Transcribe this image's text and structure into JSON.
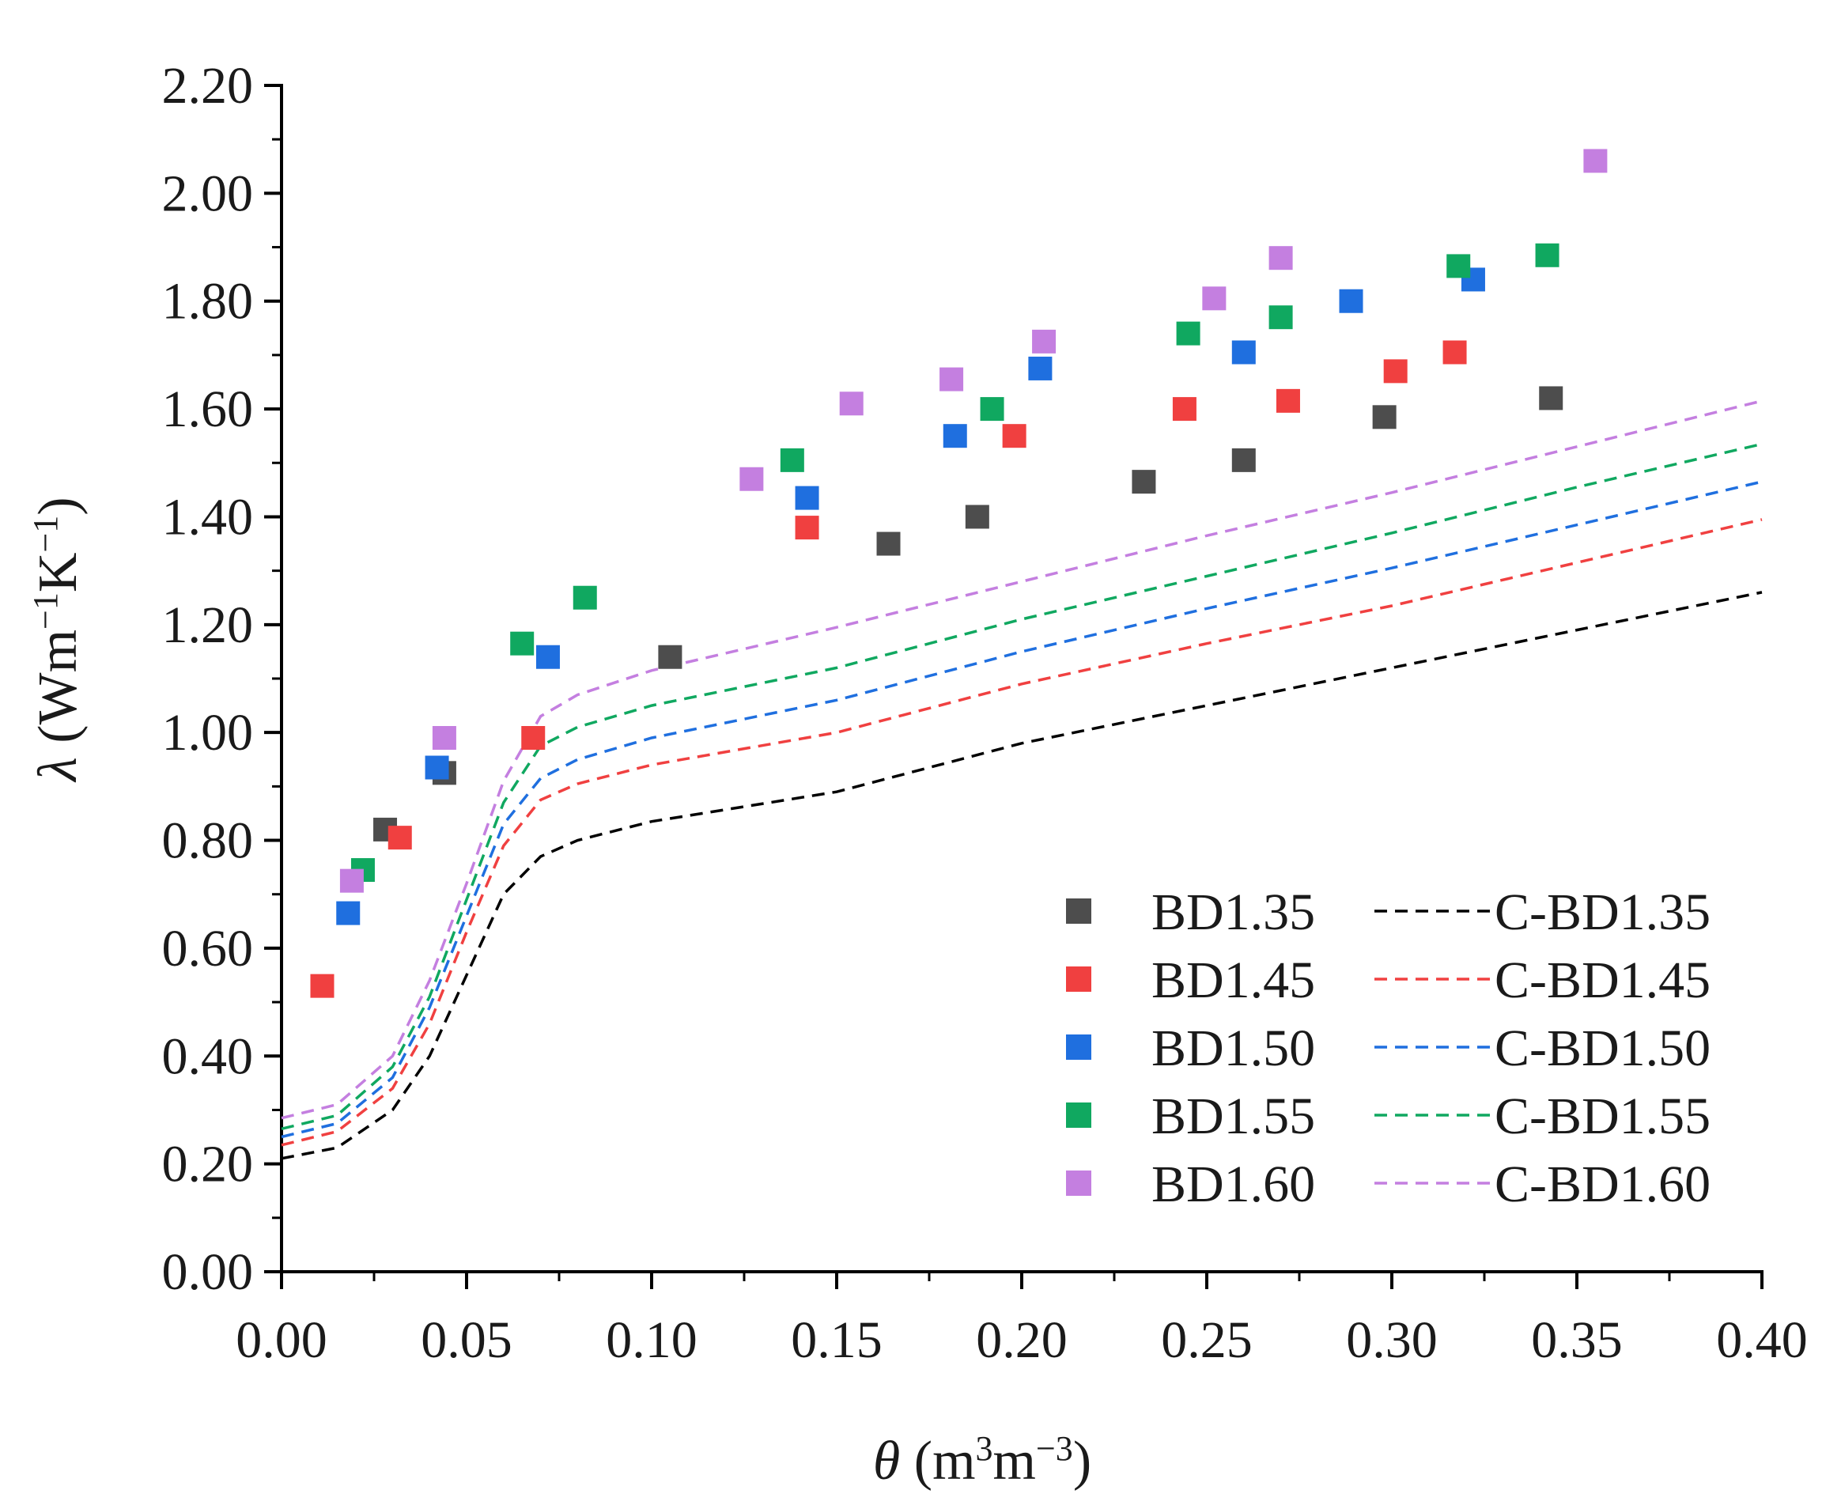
{
  "chart_data": {
    "type": "scatter",
    "title": "",
    "xlabel": "θ (m³m⁻³)",
    "ylabel": "λ (Wm⁻¹K⁻¹)",
    "xlabel_parts": {
      "symbol": "θ",
      "open": " (m",
      "sup1": "3",
      "mid": "m",
      "sup2": "−3",
      "close": ")"
    },
    "ylabel_parts": {
      "symbol": "λ",
      "open": " (Wm",
      "sup1": "−1",
      "mid": "K",
      "sup2": "−1",
      "close": ")"
    },
    "xlim": [
      0.0,
      0.4
    ],
    "ylim": [
      0.0,
      2.2
    ],
    "x_ticks": [
      0.0,
      0.05,
      0.1,
      0.15,
      0.2,
      0.25,
      0.3,
      0.35,
      0.4
    ],
    "x_tick_labels": [
      "0.00",
      "0.05",
      "0.10",
      "0.15",
      "0.20",
      "0.25",
      "0.30",
      "0.35",
      "0.40"
    ],
    "y_ticks": [
      0.0,
      0.2,
      0.4,
      0.6,
      0.8,
      1.0,
      1.2,
      1.4,
      1.6,
      1.8,
      2.0,
      2.2
    ],
    "y_tick_labels": [
      "0.00",
      "0.20",
      "0.40",
      "0.60",
      "0.80",
      "1.00",
      "1.20",
      "1.40",
      "1.60",
      "1.80",
      "2.00",
      "2.20"
    ],
    "grid": false,
    "legend_position": "bottom-right",
    "series": [
      {
        "name": "BD1.35",
        "kind": "scatter",
        "color": "#4d4d4d",
        "points": [
          [
            0.028,
            0.82
          ],
          [
            0.044,
            0.925
          ],
          [
            0.105,
            1.14
          ],
          [
            0.164,
            1.35
          ],
          [
            0.188,
            1.4
          ],
          [
            0.233,
            1.465
          ],
          [
            0.26,
            1.505
          ],
          [
            0.298,
            1.585
          ],
          [
            0.343,
            1.62
          ]
        ]
      },
      {
        "name": "BD1.45",
        "kind": "scatter",
        "color": "#f04040",
        "points": [
          [
            0.011,
            0.53
          ],
          [
            0.032,
            0.805
          ],
          [
            0.068,
            0.99
          ],
          [
            0.142,
            1.38
          ],
          [
            0.198,
            1.55
          ],
          [
            0.244,
            1.6
          ],
          [
            0.272,
            1.615
          ],
          [
            0.301,
            1.67
          ],
          [
            0.317,
            1.705
          ]
        ]
      },
      {
        "name": "BD1.50",
        "kind": "scatter",
        "color": "#1f6fdf",
        "points": [
          [
            0.018,
            0.665
          ],
          [
            0.042,
            0.935
          ],
          [
            0.072,
            1.14
          ],
          [
            0.142,
            1.435
          ],
          [
            0.182,
            1.55
          ],
          [
            0.205,
            1.675
          ],
          [
            0.26,
            1.705
          ],
          [
            0.289,
            1.8
          ],
          [
            0.322,
            1.84
          ]
        ]
      },
      {
        "name": "BD1.55",
        "kind": "scatter",
        "color": "#10a860",
        "points": [
          [
            0.022,
            0.745
          ],
          [
            0.065,
            1.165
          ],
          [
            0.082,
            1.25
          ],
          [
            0.138,
            1.505
          ],
          [
            0.192,
            1.6
          ],
          [
            0.245,
            1.74
          ],
          [
            0.27,
            1.77
          ],
          [
            0.318,
            1.865
          ],
          [
            0.342,
            1.885
          ]
        ]
      },
      {
        "name": "BD1.60",
        "kind": "scatter",
        "color": "#c47fe0",
        "points": [
          [
            0.019,
            0.725
          ],
          [
            0.044,
            0.99
          ],
          [
            0.127,
            1.47
          ],
          [
            0.154,
            1.61
          ],
          [
            0.181,
            1.655
          ],
          [
            0.206,
            1.725
          ],
          [
            0.252,
            1.805
          ],
          [
            0.27,
            1.88
          ],
          [
            0.355,
            2.06
          ]
        ]
      },
      {
        "name": "C-BD1.35",
        "kind": "line",
        "style": "dashed",
        "color": "#000000",
        "points": [
          [
            0.0,
            0.21
          ],
          [
            0.015,
            0.23
          ],
          [
            0.03,
            0.3
          ],
          [
            0.04,
            0.4
          ],
          [
            0.05,
            0.55
          ],
          [
            0.06,
            0.7
          ],
          [
            0.07,
            0.77
          ],
          [
            0.08,
            0.8
          ],
          [
            0.1,
            0.835
          ],
          [
            0.15,
            0.89
          ],
          [
            0.2,
            0.98
          ],
          [
            0.25,
            1.05
          ],
          [
            0.3,
            1.12
          ],
          [
            0.35,
            1.19
          ],
          [
            0.4,
            1.26
          ]
        ]
      },
      {
        "name": "C-BD1.45",
        "kind": "line",
        "style": "dashed",
        "color": "#f04040",
        "points": [
          [
            0.0,
            0.235
          ],
          [
            0.015,
            0.26
          ],
          [
            0.03,
            0.34
          ],
          [
            0.04,
            0.46
          ],
          [
            0.05,
            0.63
          ],
          [
            0.06,
            0.79
          ],
          [
            0.07,
            0.875
          ],
          [
            0.08,
            0.905
          ],
          [
            0.1,
            0.94
          ],
          [
            0.15,
            1.0
          ],
          [
            0.2,
            1.09
          ],
          [
            0.25,
            1.165
          ],
          [
            0.3,
            1.235
          ],
          [
            0.35,
            1.315
          ],
          [
            0.4,
            1.395
          ]
        ]
      },
      {
        "name": "C-BD1.50",
        "kind": "line",
        "style": "dashed",
        "color": "#1f6fdf",
        "points": [
          [
            0.0,
            0.25
          ],
          [
            0.015,
            0.275
          ],
          [
            0.03,
            0.36
          ],
          [
            0.04,
            0.49
          ],
          [
            0.05,
            0.66
          ],
          [
            0.06,
            0.83
          ],
          [
            0.07,
            0.915
          ],
          [
            0.08,
            0.95
          ],
          [
            0.1,
            0.99
          ],
          [
            0.15,
            1.06
          ],
          [
            0.2,
            1.15
          ],
          [
            0.25,
            1.23
          ],
          [
            0.3,
            1.305
          ],
          [
            0.35,
            1.385
          ],
          [
            0.4,
            1.465
          ]
        ]
      },
      {
        "name": "C-BD1.55",
        "kind": "line",
        "style": "dashed",
        "color": "#10a860",
        "points": [
          [
            0.0,
            0.265
          ],
          [
            0.015,
            0.29
          ],
          [
            0.03,
            0.38
          ],
          [
            0.04,
            0.51
          ],
          [
            0.05,
            0.69
          ],
          [
            0.06,
            0.87
          ],
          [
            0.07,
            0.975
          ],
          [
            0.08,
            1.01
          ],
          [
            0.1,
            1.05
          ],
          [
            0.15,
            1.12
          ],
          [
            0.2,
            1.21
          ],
          [
            0.25,
            1.29
          ],
          [
            0.3,
            1.37
          ],
          [
            0.35,
            1.455
          ],
          [
            0.4,
            1.535
          ]
        ]
      },
      {
        "name": "C-BD1.60",
        "kind": "line",
        "style": "dashed",
        "color": "#c47fe0",
        "points": [
          [
            0.0,
            0.285
          ],
          [
            0.015,
            0.31
          ],
          [
            0.03,
            0.4
          ],
          [
            0.04,
            0.54
          ],
          [
            0.05,
            0.72
          ],
          [
            0.06,
            0.91
          ],
          [
            0.07,
            1.03
          ],
          [
            0.08,
            1.07
          ],
          [
            0.1,
            1.115
          ],
          [
            0.15,
            1.195
          ],
          [
            0.2,
            1.28
          ],
          [
            0.25,
            1.365
          ],
          [
            0.3,
            1.445
          ],
          [
            0.35,
            1.53
          ],
          [
            0.4,
            1.615
          ]
        ]
      }
    ]
  }
}
